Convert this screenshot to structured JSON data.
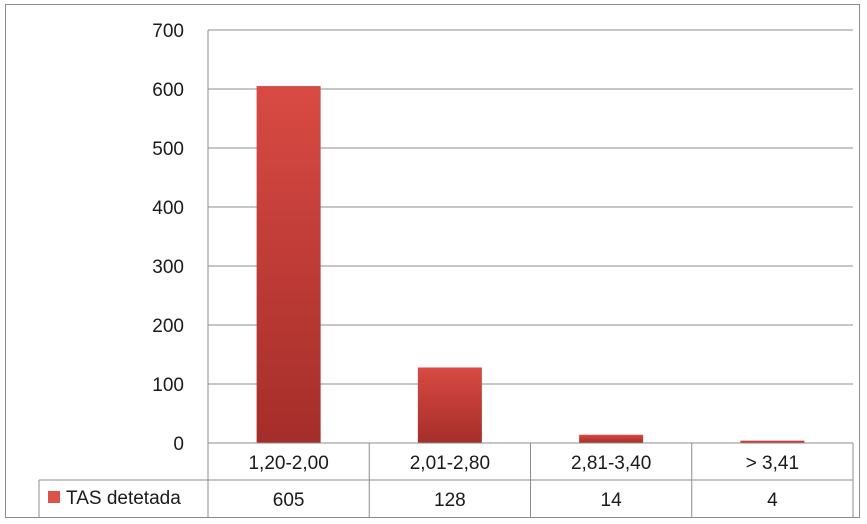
{
  "chart_data": {
    "type": "bar",
    "categories": [
      "1,20-2,00",
      "2,01-2,80",
      "2,81-3,40",
      "> 3,41"
    ],
    "series": [
      {
        "name": "TAS detetada",
        "values": [
          605,
          128,
          14,
          4
        ],
        "color": "#c0392b"
      }
    ],
    "data_table": {
      "row_label": "TAS detetada",
      "cells": [
        "605",
        "128",
        "14",
        "4"
      ]
    },
    "y_ticks": [
      "0",
      "100",
      "200",
      "300",
      "400",
      "500",
      "600",
      "700"
    ],
    "ylim": [
      0,
      700
    ],
    "grid": true,
    "legend": "data-table-row",
    "colors": {
      "bar_top": "#d9534a",
      "bar_bottom": "#a8302a",
      "grid": "#8c8c8c"
    }
  }
}
